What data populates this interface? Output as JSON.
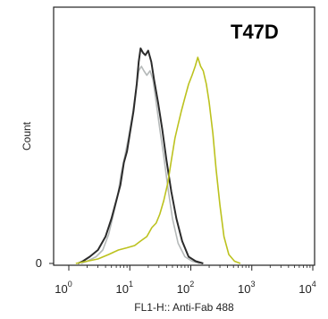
{
  "chart_data": {
    "type": "line",
    "panel_label": "T47D",
    "xlabel": "FL1-H:: Anti-Fab 488",
    "ylabel": "Count",
    "x_scale": "log",
    "xlim": [
      1,
      10000
    ],
    "ylim": [
      0,
      100
    ],
    "x_ticks": [
      {
        "value": 1,
        "base": "10",
        "exp": "0"
      },
      {
        "value": 10,
        "base": "10",
        "exp": "1"
      },
      {
        "value": 100,
        "base": "10",
        "exp": "2"
      },
      {
        "value": 1000,
        "base": "10",
        "exp": "3"
      },
      {
        "value": 10000,
        "base": "10",
        "exp": "4"
      }
    ],
    "y_ticks": [
      {
        "value": 0,
        "label": "0"
      }
    ],
    "grid": false,
    "series": [
      {
        "color": "#b5b9b9",
        "points": [
          [
            1.6,
            0
          ],
          [
            2,
            1
          ],
          [
            2.8,
            3
          ],
          [
            3.6,
            6
          ],
          [
            4.5,
            13
          ],
          [
            5.4,
            22
          ],
          [
            6.3,
            30
          ],
          [
            7.2,
            40
          ],
          [
            8.3,
            48
          ],
          [
            9.5,
            56
          ],
          [
            11,
            66
          ],
          [
            12.5,
            77
          ],
          [
            14,
            86
          ],
          [
            15.5,
            88
          ],
          [
            17,
            86
          ],
          [
            19,
            84
          ],
          [
            21.5,
            86
          ],
          [
            24,
            82
          ],
          [
            27,
            72
          ],
          [
            31,
            60
          ],
          [
            36,
            48
          ],
          [
            42,
            34
          ],
          [
            50,
            20
          ],
          [
            62,
            9
          ],
          [
            80,
            3
          ],
          [
            105,
            1
          ],
          [
            140,
            0
          ]
        ]
      },
      {
        "color": "#2b2b2b",
        "points": [
          [
            1.4,
            0
          ],
          [
            1.7,
            1
          ],
          [
            2.2,
            3
          ],
          [
            3,
            6
          ],
          [
            4,
            12
          ],
          [
            5,
            20
          ],
          [
            6,
            28
          ],
          [
            7,
            35
          ],
          [
            8,
            45
          ],
          [
            9,
            50
          ],
          [
            10,
            58
          ],
          [
            11.5,
            68
          ],
          [
            13,
            80
          ],
          [
            14,
            90
          ],
          [
            15,
            96
          ],
          [
            16.5,
            94
          ],
          [
            18,
            93
          ],
          [
            20,
            95
          ],
          [
            22.5,
            90
          ],
          [
            25,
            82
          ],
          [
            29,
            72
          ],
          [
            34,
            60
          ],
          [
            40,
            46
          ],
          [
            48,
            32
          ],
          [
            58,
            20
          ],
          [
            72,
            10
          ],
          [
            92,
            3
          ],
          [
            120,
            1
          ],
          [
            160,
            0
          ]
        ]
      },
      {
        "color": "#bcc21e",
        "points": [
          [
            1.3,
            0
          ],
          [
            2,
            1
          ],
          [
            3,
            2
          ],
          [
            4.5,
            4
          ],
          [
            6.5,
            6
          ],
          [
            9,
            7
          ],
          [
            12,
            8
          ],
          [
            15,
            10
          ],
          [
            19,
            12
          ],
          [
            23,
            16
          ],
          [
            27,
            18
          ],
          [
            31,
            22
          ],
          [
            36,
            28
          ],
          [
            42,
            36
          ],
          [
            48,
            46
          ],
          [
            55,
            56
          ],
          [
            62,
            62
          ],
          [
            70,
            68
          ],
          [
            80,
            74
          ],
          [
            92,
            80
          ],
          [
            105,
            84
          ],
          [
            118,
            88
          ],
          [
            130,
            92
          ],
          [
            145,
            88
          ],
          [
            160,
            86
          ],
          [
            180,
            80
          ],
          [
            200,
            72
          ],
          [
            230,
            58
          ],
          [
            260,
            42
          ],
          [
            300,
            26
          ],
          [
            350,
            12
          ],
          [
            420,
            4
          ],
          [
            520,
            1
          ],
          [
            650,
            0
          ]
        ]
      }
    ]
  }
}
